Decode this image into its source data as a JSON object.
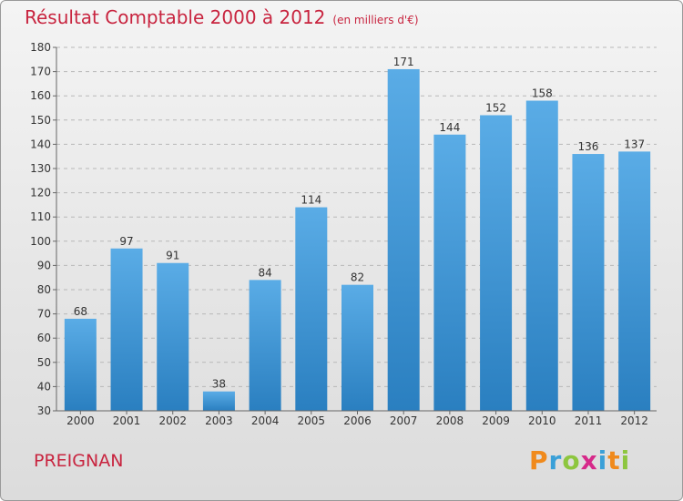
{
  "chart_data": {
    "type": "bar",
    "title": "Résultat Comptable 2000 à 2012",
    "subtitle": "(en milliers d'€)",
    "categories": [
      "2000",
      "2001",
      "2002",
      "2003",
      "2004",
      "2005",
      "2006",
      "2007",
      "2008",
      "2009",
      "2010",
      "2011",
      "2012"
    ],
    "values": [
      68,
      97,
      91,
      38,
      84,
      114,
      82,
      171,
      144,
      152,
      158,
      136,
      137
    ],
    "ylim": [
      30,
      180
    ],
    "yticks": [
      30,
      40,
      50,
      60,
      70,
      80,
      90,
      100,
      110,
      120,
      130,
      140,
      150,
      160,
      170,
      180
    ],
    "grid": true,
    "bar_color_top": "#5aace6",
    "bar_color_bottom": "#2a7fc0"
  },
  "commune": "PREIGNAN",
  "logo": {
    "letters": [
      "P",
      "r",
      "o",
      "x",
      "i",
      "t",
      "i"
    ],
    "colors": [
      "#f08a1c",
      "#3aa0d8",
      "#8dc63f",
      "#d62a8a",
      "#3aa0d8",
      "#f08a1c",
      "#8dc63f"
    ]
  },
  "colors": {
    "accent": "#c8243f"
  }
}
